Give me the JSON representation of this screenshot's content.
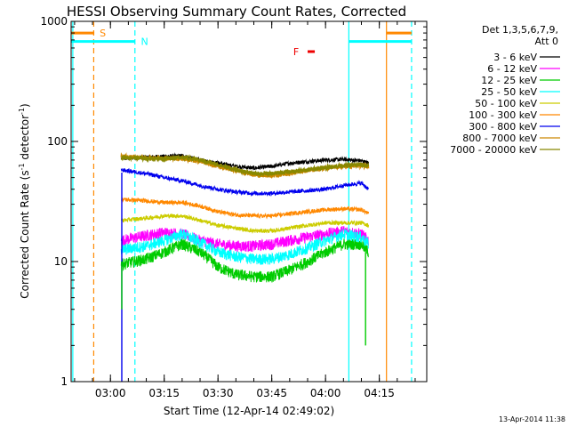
{
  "chart_data": {
    "type": "line",
    "title": "HESSI Observing Summary Count Rates, Corrected",
    "ylabel_main": "Corrected Count Rate (s",
    "ylabel_sup1": "-1",
    "ylabel_mid": " detector",
    "ylabel_sup2": "-1",
    "ylabel_end": ")",
    "xlabel": "Start Time (12-Apr-14 02:49:02)",
    "yscale": "log",
    "ylim": [
      1,
      1000
    ],
    "xlim": [
      "02:49:02",
      "04:28:14"
    ],
    "x_ticks": [
      "03:00",
      "03:15",
      "03:30",
      "03:45",
      "04:00",
      "04:15"
    ],
    "y_ticks": [
      "1",
      "10",
      "100",
      "1000"
    ],
    "legend_header": [
      "Det 1,3,5,6,7,9,",
      "Att 0"
    ],
    "legend_position": "right",
    "footer_timestamp": "13-Apr-2014 11:38",
    "series": [
      {
        "name": "3 - 6 keV",
        "color": "#000000",
        "data_start": "03:03",
        "data_end": "04:12",
        "x": [
          "03:03",
          "03:10",
          "03:15",
          "03:20",
          "03:25",
          "03:30",
          "03:35",
          "03:40",
          "03:45",
          "03:50",
          "03:55",
          "04:00",
          "04:05",
          "04:10",
          "04:12"
        ],
        "y": [
          72,
          74,
          75,
          76,
          70,
          66,
          62,
          60,
          62,
          66,
          68,
          70,
          71,
          69,
          66
        ]
      },
      {
        "name": "6 - 12 keV",
        "color": "#ff00ff",
        "data_start": "03:03",
        "data_end": "04:12",
        "x": [
          "03:03",
          "03:10",
          "03:15",
          "03:20",
          "03:25",
          "03:30",
          "03:35",
          "03:40",
          "03:45",
          "03:50",
          "03:55",
          "04:00",
          "04:05",
          "04:10",
          "04:12"
        ],
        "y": [
          15,
          16.5,
          17.5,
          17,
          15,
          14,
          13.5,
          13.5,
          14,
          15,
          16,
          17,
          18,
          17,
          15
        ]
      },
      {
        "name": "12 - 25 keV",
        "color": "#00cc00",
        "data_start": "03:03",
        "data_end": "04:12",
        "x": [
          "03:03",
          "03:10",
          "03:15",
          "03:20",
          "03:25",
          "03:30",
          "03:35",
          "03:40",
          "03:45",
          "03:50",
          "03:55",
          "04:00",
          "04:05",
          "04:10",
          "04:12"
        ],
        "y": [
          9.5,
          10.5,
          12,
          14,
          12,
          9,
          7.8,
          7.5,
          7.5,
          8.5,
          10,
          12,
          14,
          14,
          12
        ]
      },
      {
        "name": "25 - 50 keV",
        "color": "#00ffff",
        "data_start": "03:03",
        "data_end": "04:12",
        "x": [
          "03:03",
          "03:10",
          "03:15",
          "03:20",
          "03:25",
          "03:30",
          "03:35",
          "03:40",
          "03:45",
          "03:50",
          "03:55",
          "04:00",
          "04:05",
          "04:10",
          "04:12"
        ],
        "y": [
          12.5,
          13.5,
          15,
          17,
          14.5,
          12,
          11,
          10.5,
          10.5,
          11.5,
          13,
          15,
          17,
          16,
          14
        ]
      },
      {
        "name": "50 - 100 keV",
        "color": "#cccc00",
        "data_start": "03:03",
        "data_end": "04:12",
        "x": [
          "03:03",
          "03:10",
          "03:15",
          "03:20",
          "03:25",
          "03:30",
          "03:35",
          "03:40",
          "03:45",
          "03:50",
          "03:55",
          "04:00",
          "04:05",
          "04:10",
          "04:12"
        ],
        "y": [
          22,
          23,
          24,
          24,
          22,
          20,
          19,
          18,
          18,
          19,
          20,
          21,
          21,
          21,
          20
        ]
      },
      {
        "name": "100 - 300 keV",
        "color": "#ff8800",
        "data_start": "03:03",
        "data_end": "04:12",
        "x": [
          "03:03",
          "03:10",
          "03:15",
          "03:20",
          "03:25",
          "03:30",
          "03:35",
          "03:40",
          "03:45",
          "03:50",
          "03:55",
          "04:00",
          "04:05",
          "04:10",
          "04:12"
        ],
        "y": [
          33,
          32,
          31,
          31,
          29,
          26,
          24.5,
          24,
          24,
          25,
          26,
          27,
          27.5,
          27,
          25
        ]
      },
      {
        "name": "300 - 800 keV",
        "color": "#0000ee",
        "data_start": "03:03",
        "data_end": "04:12",
        "x": [
          "03:03",
          "03:10",
          "03:15",
          "03:20",
          "03:25",
          "03:30",
          "03:35",
          "03:40",
          "03:45",
          "03:50",
          "03:55",
          "04:00",
          "04:05",
          "04:10",
          "04:12"
        ],
        "y": [
          58,
          54,
          50,
          47,
          43,
          40,
          38,
          37,
          37,
          38,
          39,
          40,
          43,
          45,
          40
        ]
      },
      {
        "name": "800 - 7000 keV",
        "color": "#cc8800",
        "data_start": "03:03",
        "data_end": "04:12",
        "x": [
          "03:03",
          "03:10",
          "03:15",
          "03:20",
          "03:25",
          "03:30",
          "03:35",
          "03:40",
          "03:45",
          "03:50",
          "03:55",
          "04:00",
          "04:05",
          "04:10",
          "04:12"
        ],
        "y": [
          75,
          73,
          72,
          72,
          68,
          62,
          57,
          53,
          52,
          54,
          57,
          60,
          62,
          63,
          62
        ]
      },
      {
        "name": "7000 - 20000 keV",
        "color": "#888800",
        "data_start": "03:03",
        "data_end": "04:12",
        "x": [
          "03:03",
          "03:10",
          "03:15",
          "03:20",
          "03:25",
          "03:30",
          "03:35",
          "03:40",
          "03:45",
          "03:50",
          "03:55",
          "04:00",
          "04:05",
          "04:10",
          "04:12"
        ],
        "y": [
          74,
          72,
          72,
          74,
          70,
          64,
          58,
          54,
          54,
          56,
          58,
          61,
          63,
          64,
          62
        ]
      }
    ],
    "vertical_markers": [
      {
        "time": "02:49:30",
        "color": "#00ffff",
        "style": "solid"
      },
      {
        "time": "02:55:20",
        "color": "#ff8800",
        "style": "dashed"
      },
      {
        "time": "03:06:50",
        "color": "#00ffff",
        "style": "dashed"
      },
      {
        "time": "04:06:30",
        "color": "#00ffff",
        "style": "solid"
      },
      {
        "time": "04:17:00",
        "color": "#ff8800",
        "style": "solid"
      },
      {
        "time": "04:24:00",
        "color": "#00ffff",
        "style": "dashed"
      }
    ],
    "orbit_flags": [
      {
        "label": "S",
        "color": "#ff8800",
        "x_start": "02:49:02",
        "x_end": "02:55:30",
        "y": 800,
        "label_at": "02:57:00"
      },
      {
        "label": "N",
        "color": "#00ffff",
        "x_start": "02:49:02",
        "x_end": "03:06:50",
        "y": 680,
        "label_at": "03:08:30"
      },
      {
        "label": "F",
        "color": "#ee0000",
        "x_start": "03:55:00",
        "x_end": "03:57:00",
        "y": 560,
        "label_at": "03:51:00"
      },
      {
        "label": "",
        "color": "#00ffff",
        "x_start": "04:06:30",
        "x_end": "04:24:00",
        "y": 680
      },
      {
        "label": "",
        "color": "#ff8800",
        "x_start": "04:17:00",
        "x_end": "04:24:00",
        "y": 800
      }
    ],
    "spikes": [
      {
        "time": "03:03:10",
        "color": "#0000ee",
        "from": 1,
        "to": 55
      },
      {
        "time": "03:03:10",
        "color": "#00cc00",
        "from": 4,
        "to": 10
      },
      {
        "time": "04:11:10",
        "color": "#00cc00",
        "from": 2,
        "to": 12
      }
    ]
  }
}
